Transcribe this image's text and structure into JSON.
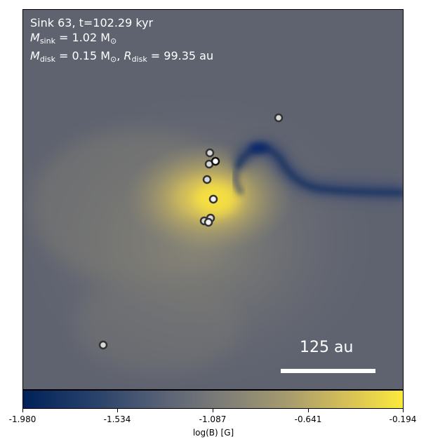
{
  "panel": {
    "line1": "Sink 63, t=102.29 kyr",
    "msink_symbol": "M",
    "msink_sub": "sink",
    "msink_value": " = 1.02 M",
    "msink_unit_sub": "⊙",
    "mdisk_symbol": "M",
    "mdisk_sub": "disk",
    "mdisk_value": " = 0.15 M",
    "mdisk_unit_sub": "⊙",
    "mdisk_sep": ", ",
    "rdisk_symbol": "R",
    "rdisk_sub": "disk",
    "rdisk_value": " = 99.35 au"
  },
  "scalebar": {
    "label": "125 au"
  },
  "colorbar": {
    "label": "log(B) [G]",
    "ticks": [
      "-1.980",
      "-1.534",
      "-1.087",
      "-0.641",
      "-0.194"
    ],
    "colors": {
      "low": "#00225a",
      "mid": "#7c7c78",
      "high": "#fbe93d"
    }
  }
}
